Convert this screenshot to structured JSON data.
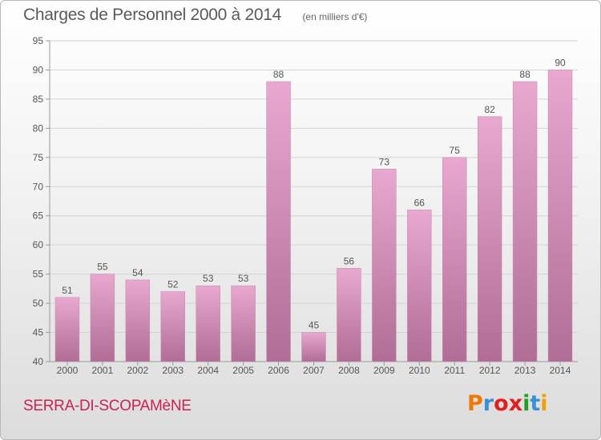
{
  "header": {
    "title": "Charges de Personnel 2000 à 2014",
    "subtitle": "(en milliers d'€)"
  },
  "footer": {
    "commune": "SERRA-DI-SCOPAMèNE",
    "logo_text": "Proxiti",
    "logo_colors": [
      "#f07800",
      "#3a8fd8",
      "#e02020",
      "#e02020",
      "#20a020",
      "#3a8fd8",
      "#f0a000"
    ]
  },
  "chart_data": {
    "type": "bar",
    "title": "Charges de Personnel 2000 à 2014",
    "subtitle": "(en milliers d'€)",
    "categories": [
      "2000",
      "2001",
      "2002",
      "2003",
      "2004",
      "2005",
      "2006",
      "2007",
      "2008",
      "2009",
      "2010",
      "2011",
      "2012",
      "2013",
      "2014"
    ],
    "values": [
      51,
      55,
      54,
      52,
      53,
      53,
      88,
      45,
      56,
      73,
      66,
      75,
      82,
      88,
      90
    ],
    "ylim": [
      40,
      95
    ],
    "yticks": [
      40,
      45,
      50,
      55,
      60,
      65,
      70,
      75,
      80,
      85,
      90,
      95
    ],
    "grid": true,
    "colors": {
      "bar_top": "#e8a8cf",
      "bar_bottom": "#b06d95",
      "grid": "#d4d4d4",
      "axis": "#999999"
    }
  }
}
